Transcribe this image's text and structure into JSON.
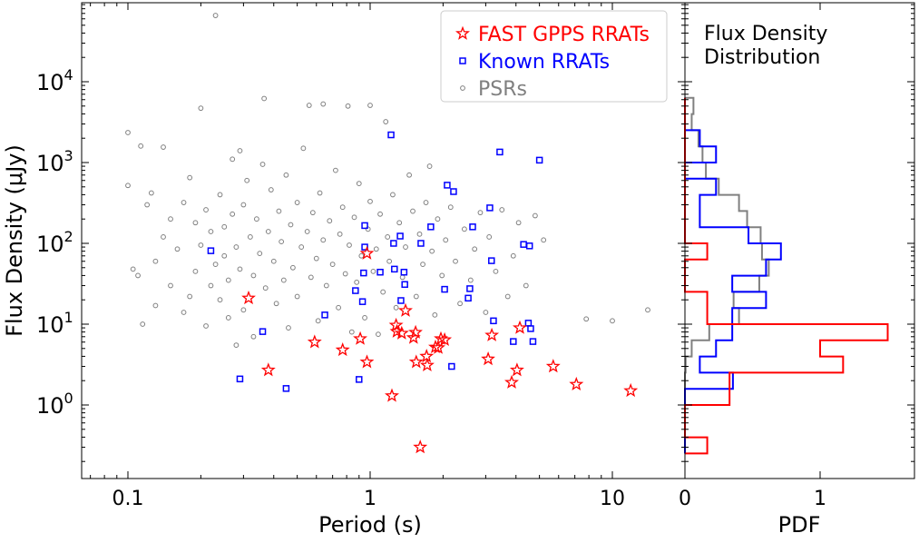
{
  "chart_data": [
    {
      "type": "scatter",
      "xlabel": "Period (s)",
      "ylabel": "Flux Density (μJy)",
      "xscale": "log",
      "yscale": "log",
      "xlim": [
        0.063,
        18
      ],
      "ylim": [
        0.12,
        95000
      ],
      "xticks": [
        0.1,
        1,
        10
      ],
      "xtick_labels": [
        "0.1",
        "1",
        "10"
      ],
      "yticks": [
        1,
        10,
        100,
        1000,
        10000
      ],
      "ytick_labels": [
        {
          "base": "10",
          "exp": "0"
        },
        {
          "base": "10",
          "exp": "1"
        },
        {
          "base": "10",
          "exp": "2"
        },
        {
          "base": "10",
          "exp": "3"
        },
        {
          "base": "10",
          "exp": "4"
        }
      ],
      "grid": false,
      "legend_position": "top-right",
      "series": [
        {
          "name": "FAST GPPS RRATs",
          "marker": "star",
          "color": "#ff0000",
          "points": [
            [
              0.315,
              21
            ],
            [
              0.59,
              6.0
            ],
            [
              0.77,
              4.8
            ],
            [
              0.91,
              6.6
            ],
            [
              0.97,
              3.4
            ],
            [
              0.38,
              2.7
            ],
            [
              1.23,
              1.3
            ],
            [
              1.4,
              14.7
            ],
            [
              1.28,
              9.7
            ],
            [
              1.29,
              8.1
            ],
            [
              1.35,
              7.7
            ],
            [
              1.54,
              7.9
            ],
            [
              1.51,
              6.8
            ],
            [
              1.55,
              3.4
            ],
            [
              1.71,
              4.0
            ],
            [
              1.72,
              3.1
            ],
            [
              1.96,
              6.6
            ],
            [
              2.03,
              6.4
            ],
            [
              1.86,
              5.2
            ],
            [
              1.91,
              5.1
            ],
            [
              3.18,
              7.3
            ],
            [
              3.07,
              3.7
            ],
            [
              4.15,
              9.0
            ],
            [
              4.04,
              2.7
            ],
            [
              3.84,
              1.9
            ],
            [
              5.7,
              3.0
            ],
            [
              7.1,
              1.8
            ],
            [
              11.9,
              1.5
            ],
            [
              1.61,
              0.3
            ],
            [
              0.97,
              75
            ]
          ]
        },
        {
          "name": "Known RRATs",
          "marker": "square",
          "color": "#0000ff",
          "points": [
            [
              0.22,
              81
            ],
            [
              0.29,
              2.1
            ],
            [
              0.45,
              1.6
            ],
            [
              0.36,
              8.1
            ],
            [
              0.65,
              13
            ],
            [
              0.87,
              26
            ],
            [
              0.9,
              2.07
            ],
            [
              0.93,
              19
            ],
            [
              0.94,
              43
            ],
            [
              0.95,
              90
            ],
            [
              0.95,
              166
            ],
            [
              1.1,
              44
            ],
            [
              1.22,
              2200
            ],
            [
              1.26,
              48
            ],
            [
              1.25,
              100
            ],
            [
              1.39,
              31
            ],
            [
              1.33,
              123
            ],
            [
              1.38,
              44
            ],
            [
              1.34,
              19.6
            ],
            [
              1.62,
              100
            ],
            [
              1.78,
              160
            ],
            [
              2.03,
              27
            ],
            [
              2.08,
              525
            ],
            [
              2.21,
              437
            ],
            [
              2.54,
              21
            ],
            [
              2.58,
              27.5
            ],
            [
              2.65,
              160
            ],
            [
              2.17,
              3.0
            ],
            [
              3.12,
              275
            ],
            [
              3.17,
              61
            ],
            [
              3.23,
              11
            ],
            [
              3.43,
              1350
            ],
            [
              3.9,
              6.1
            ],
            [
              4.3,
              97
            ],
            [
              4.55,
              93
            ],
            [
              4.5,
              10.3
            ],
            [
              4.6,
              8.8
            ],
            [
              4.7,
              6.1
            ],
            [
              5.0,
              1070
            ]
          ]
        },
        {
          "name": "PSRs",
          "marker": "circle",
          "color": "#808080",
          "points": [
            [
              0.23,
              66000
            ],
            [
              0.1,
              2350
            ],
            [
              0.113,
              1600
            ],
            [
              0.14,
              1550
            ],
            [
              0.1,
              520
            ],
            [
              0.105,
              48
            ],
            [
              0.11,
              40
            ],
            [
              0.115,
              10
            ],
            [
              0.13,
              17
            ],
            [
              0.12,
              300
            ],
            [
              0.125,
              420
            ],
            [
              0.13,
              60
            ],
            [
              0.14,
              120
            ],
            [
              0.15,
              30
            ],
            [
              0.15,
              200
            ],
            [
              0.16,
              85
            ],
            [
              0.17,
              14
            ],
            [
              0.17,
              320
            ],
            [
              0.18,
              22
            ],
            [
              0.18,
              650
            ],
            [
              0.19,
              45
            ],
            [
              0.19,
              180
            ],
            [
              0.2,
              4700
            ],
            [
              0.2,
              95
            ],
            [
              0.21,
              9.5
            ],
            [
              0.21,
              260
            ],
            [
              0.22,
              30
            ],
            [
              0.22,
              140
            ],
            [
              0.23,
              55
            ],
            [
              0.24,
              400
            ],
            [
              0.24,
              20
            ],
            [
              0.25,
              70
            ],
            [
              0.25,
              160
            ],
            [
              0.26,
              12
            ],
            [
              0.26,
              35
            ],
            [
              0.27,
              1100
            ],
            [
              0.27,
              230
            ],
            [
              0.28,
              5.5
            ],
            [
              0.28,
              90
            ],
            [
              0.29,
              1400
            ],
            [
              0.29,
              48
            ],
            [
              0.3,
              300
            ],
            [
              0.3,
              15
            ],
            [
              0.31,
              600
            ],
            [
              0.32,
              120
            ],
            [
              0.33,
              40
            ],
            [
              0.33,
              7
            ],
            [
              0.34,
              200
            ],
            [
              0.35,
              75
            ],
            [
              0.36,
              950
            ],
            [
              0.365,
              6200
            ],
            [
              0.37,
              28
            ],
            [
              0.38,
              140
            ],
            [
              0.39,
              460
            ],
            [
              0.4,
              60
            ],
            [
              0.41,
              18
            ],
            [
              0.42,
              250
            ],
            [
              0.43,
              105
            ],
            [
              0.44,
              35
            ],
            [
              0.45,
              700
            ],
            [
              0.46,
              9
            ],
            [
              0.47,
              170
            ],
            [
              0.48,
              50
            ],
            [
              0.5,
              320
            ],
            [
              0.5,
              22
            ],
            [
              0.52,
              90
            ],
            [
              0.53,
              1500
            ],
            [
              0.55,
              140
            ],
            [
              0.56,
              5100
            ],
            [
              0.57,
              38
            ],
            [
              0.58,
              240
            ],
            [
              0.6,
              65
            ],
            [
              0.61,
              11
            ],
            [
              0.62,
              420
            ],
            [
              0.64,
              5300
            ],
            [
              0.64,
              110
            ],
            [
              0.66,
              30
            ],
            [
              0.68,
              190
            ],
            [
              0.7,
              55
            ],
            [
              0.72,
              800
            ],
            [
              0.74,
              16
            ],
            [
              0.75,
              130
            ],
            [
              0.77,
              280
            ],
            [
              0.79,
              42
            ],
            [
              0.81,
              5000
            ],
            [
              0.82,
              95
            ],
            [
              0.84,
              8
            ],
            [
              0.86,
              210
            ],
            [
              0.88,
              33
            ],
            [
              0.9,
              550
            ],
            [
              0.92,
              70
            ],
            [
              0.95,
              12
            ],
            [
              0.98,
              150
            ],
            [
              1.0,
              5100
            ],
            [
              1.0,
              330
            ],
            [
              1.03,
              45
            ],
            [
              1.06,
              85
            ],
            [
              1.08,
              7.5
            ],
            [
              1.1,
              230
            ],
            [
              1.13,
              25
            ],
            [
              1.16,
              3200
            ],
            [
              1.18,
              120
            ],
            [
              1.2,
              60
            ],
            [
              1.24,
              400
            ],
            [
              1.28,
              16
            ],
            [
              1.32,
              180
            ],
            [
              1.36,
              38
            ],
            [
              1.4,
              90
            ],
            [
              1.45,
              700
            ],
            [
              1.5,
              250
            ],
            [
              1.55,
              22
            ],
            [
              1.6,
              130
            ],
            [
              1.65,
              55
            ],
            [
              1.7,
              320
            ],
            [
              1.76,
              900
            ],
            [
              1.8,
              80
            ],
            [
              1.85,
              13
            ],
            [
              1.9,
              200
            ],
            [
              1.98,
              40
            ],
            [
              2.05,
              110
            ],
            [
              2.15,
              280
            ],
            [
              2.25,
              60
            ],
            [
              2.35,
              18
            ],
            [
              2.45,
              150
            ],
            [
              2.6,
              35
            ],
            [
              2.7,
              85
            ],
            [
              2.85,
              240
            ],
            [
              3.0,
              14
            ],
            [
              3.1,
              120
            ],
            [
              3.3,
              45
            ],
            [
              3.5,
              260
            ],
            [
              3.7,
              22
            ],
            [
              3.9,
              70
            ],
            [
              4.1,
              180
            ],
            [
              4.4,
              30
            ],
            [
              4.8,
              220
            ],
            [
              5.2,
              110
            ],
            [
              7.8,
              11.6
            ],
            [
              10.0,
              11
            ],
            [
              14,
              15
            ]
          ]
        }
      ]
    },
    {
      "type": "histogram",
      "title": [
        "Flux Density",
        "Distribution"
      ],
      "xlabel": "PDF",
      "orientation": "horizontal",
      "xlim": [
        0,
        1.7
      ],
      "xticks": [
        0,
        1
      ],
      "xtick_labels": [
        "0",
        "1"
      ],
      "bin_edges_log10_flux": [
        -0.6,
        -0.4,
        -0.2,
        0,
        0.2,
        0.4,
        0.6,
        0.8,
        1.0,
        1.2,
        1.4,
        1.6,
        1.8,
        2.0,
        2.2,
        2.4,
        2.6,
        2.8,
        3.0,
        3.2,
        3.4,
        3.6,
        3.8
      ],
      "series": [
        {
          "name": "PSRs",
          "color": "#808080",
          "values": [
            0,
            0,
            0,
            0,
            0,
            0.005,
            0.05,
            0.18,
            0.4,
            0.36,
            0.55,
            0.62,
            0.57,
            0.56,
            0.46,
            0.4,
            0.25,
            0.155,
            0.13,
            0.1,
            0.05,
            0.063
          ]
        },
        {
          "name": "Known RRATs",
          "color": "#0000ff",
          "values": [
            0,
            0,
            0,
            0,
            0.355,
            0.11,
            0.23,
            0.35,
            0.35,
            0.6,
            0.35,
            0.6,
            0.71,
            0.47,
            0.11,
            0.11,
            0.23,
            0,
            0.23,
            0.11,
            0,
            0
          ]
        },
        {
          "name": "FAST GPPS RRATs",
          "color": "#ff0000",
          "values": [
            0.165,
            0,
            0,
            0.33,
            0.33,
            1.17,
            1.0,
            1.5,
            0.165,
            0.165,
            0,
            0,
            0.165,
            0,
            0,
            0,
            0,
            0,
            0,
            0,
            0,
            0
          ]
        }
      ]
    }
  ]
}
